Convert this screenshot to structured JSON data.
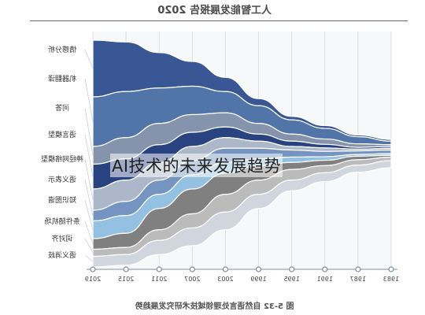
{
  "header": {
    "title": "人工智能发展报告 2020"
  },
  "figure_caption": "图 5-32 自然语言处理领域技术研究发展趋势",
  "overlay_title": "AI技术的未来发展趋势",
  "chart_data": {
    "type": "area",
    "title": "",
    "x": [
      "1983",
      "1987",
      "1991",
      "1995",
      "1999",
      "2003",
      "2007",
      "2011",
      "2015",
      "2019"
    ],
    "xlabel": "",
    "ylabel": "",
    "legend": "labels at right end of each stream",
    "series": [
      {
        "name": "情感分析",
        "color": "#2f4f8f",
        "values": [
          0.5,
          0.5,
          0.8,
          1,
          2,
          4,
          7,
          10,
          14,
          16
        ]
      },
      {
        "name": "机器翻译",
        "color": "#4a6fa5",
        "values": [
          1,
          2,
          3,
          4,
          5,
          6,
          8,
          10,
          13,
          14
        ]
      },
      {
        "name": "问答",
        "color": "#7f8fa8",
        "values": [
          0.5,
          1,
          1.5,
          2,
          3,
          4,
          5,
          6,
          6,
          5
        ]
      },
      {
        "name": "语言模型",
        "color": "#1f3a7a",
        "values": [
          0.5,
          0.5,
          1,
          1.5,
          2,
          3,
          4,
          5,
          6,
          7
        ]
      },
      {
        "name": "神经网络模型",
        "color": "#aab4c8",
        "values": [
          0.5,
          0.5,
          1,
          1,
          2,
          3,
          4,
          5,
          6,
          6
        ]
      },
      {
        "name": "语义表示",
        "color": "#6f8fbf",
        "values": [
          1,
          1,
          1.5,
          2,
          3,
          4,
          4,
          4,
          4,
          3
        ]
      },
      {
        "name": "知识图谱",
        "color": "#8fbfe0",
        "values": [
          0.5,
          0.5,
          1,
          1.5,
          2,
          3,
          4,
          4,
          5,
          5
        ]
      },
      {
        "name": "条件随机场",
        "color": "#7a7a7a",
        "values": [
          0.5,
          1,
          1.5,
          2,
          4,
          6,
          7,
          6,
          4,
          3
        ]
      },
      {
        "name": "词对齐",
        "color": "#b8b8b8",
        "values": [
          1,
          1.5,
          2,
          3,
          4,
          5,
          4,
          3,
          2,
          2
        ]
      },
      {
        "name": "语义消歧",
        "color": "#d0d4dc",
        "values": [
          2,
          2,
          2.5,
          3,
          4,
          5,
          5,
          4,
          3,
          3
        ]
      }
    ]
  }
}
